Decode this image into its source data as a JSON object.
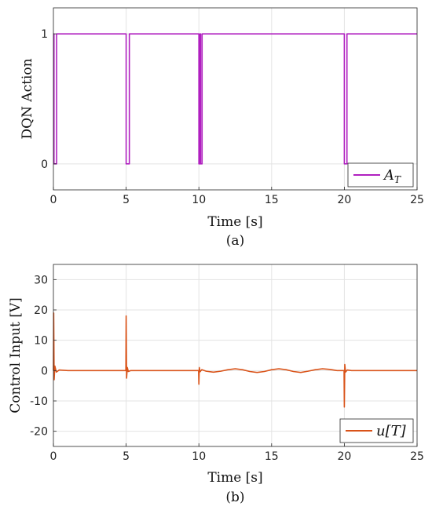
{
  "chart_data": [
    {
      "type": "line",
      "caption": "(a)",
      "xlabel": "Time [s]",
      "ylabel": "DQN Action",
      "xlim": [
        0,
        25
      ],
      "ylim": [
        -0.2,
        1.2
      ],
      "xticks": [
        0,
        5,
        10,
        15,
        20,
        25
      ],
      "yticks": [
        0,
        1
      ],
      "grid": true,
      "legend_position": "bottom-right",
      "series": [
        {
          "name": "A_T",
          "legend_main": "A",
          "legend_sub": "T",
          "color": "#B020C0",
          "x": [
            0,
            0.04,
            0.04,
            0.22,
            0.22,
            5.0,
            5.0,
            5.22,
            5.22,
            10.0,
            10.0,
            10.08,
            10.08,
            10.12,
            10.12,
            10.22,
            10.22,
            20.0,
            20.0,
            20.18,
            20.18,
            25
          ],
          "y": [
            1,
            1,
            0,
            0,
            1,
            1,
            0,
            0,
            1,
            1,
            0,
            0,
            1,
            1,
            0,
            0,
            1,
            1,
            0,
            0,
            1,
            1
          ]
        }
      ]
    },
    {
      "type": "line",
      "caption": "(b)",
      "xlabel": "Time [s]",
      "ylabel": "Control Input [V]",
      "xlim": [
        0,
        25
      ],
      "ylim": [
        -25,
        35
      ],
      "xticks": [
        0,
        5,
        10,
        15,
        20,
        25
      ],
      "yticks": [
        -20,
        -10,
        0,
        10,
        20,
        30
      ],
      "grid": true,
      "legend_position": "bottom-right",
      "series": [
        {
          "name": "u[T]",
          "legend_main": "u[T]",
          "legend_sub": "",
          "color": "#D95319",
          "x": [
            0,
            0.02,
            0.05,
            0.1,
            0.2,
            0.4,
            1.0,
            4.98,
            5.0,
            5.03,
            5.08,
            5.15,
            5.3,
            6.0,
            9.98,
            10.0,
            10.03,
            10.08,
            10.2,
            10.5,
            11.0,
            11.5,
            12.0,
            12.5,
            13.0,
            13.5,
            14.0,
            14.5,
            15.0,
            15.5,
            16.0,
            16.5,
            17.0,
            17.5,
            18.0,
            18.5,
            19.0,
            19.5,
            19.98,
            20.0,
            20.03,
            20.08,
            20.2,
            20.5,
            25
          ],
          "y": [
            0,
            19,
            -3,
            1.5,
            -0.5,
            0.2,
            0,
            0,
            18,
            -2.5,
            1,
            -0.3,
            0,
            0,
            0,
            -4.5,
            1,
            -0.4,
            0.3,
            -0.2,
            -0.5,
            -0.2,
            0.3,
            0.6,
            0.3,
            -0.3,
            -0.6,
            -0.3,
            0.3,
            0.6,
            0.3,
            -0.3,
            -0.6,
            -0.2,
            0.3,
            0.6,
            0.4,
            0,
            0,
            -12,
            2,
            -0.5,
            0.2,
            0,
            0
          ]
        }
      ]
    }
  ]
}
